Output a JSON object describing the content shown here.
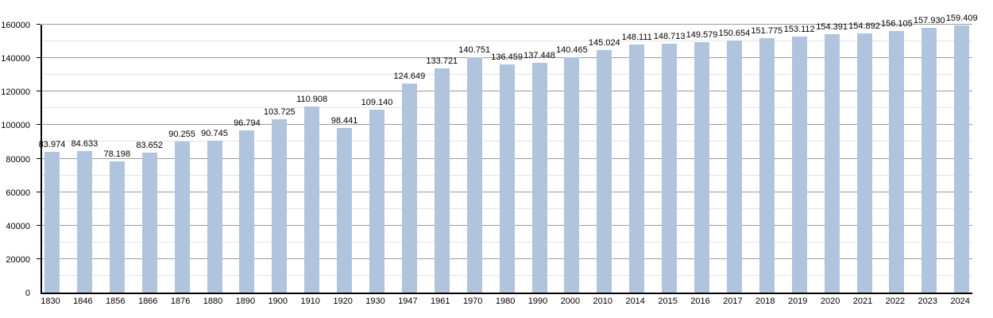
{
  "chart_data": {
    "type": "bar",
    "title": "",
    "xlabel": "",
    "ylabel": "",
    "legend_position": "none",
    "categories": [
      "1830",
      "1846",
      "1856",
      "1866",
      "1876",
      "1880",
      "1890",
      "1900",
      "1910",
      "1920",
      "1930",
      "1947",
      "1961",
      "1970",
      "1980",
      "1990",
      "2000",
      "2010",
      "2014",
      "2015",
      "2016",
      "2017",
      "2018",
      "2019",
      "2020",
      "2021",
      "2022",
      "2023",
      "2024"
    ],
    "values": [
      83974,
      84633,
      78198,
      83652,
      90255,
      90745,
      96794,
      103725,
      110908,
      98441,
      109140,
      124649,
      133721,
      140751,
      136459,
      137448,
      140465,
      145024,
      148111,
      148713,
      149579,
      150654,
      151775,
      153112,
      154391,
      154892,
      156105,
      157930,
      159409
    ],
    "bar_labels": [
      "83.974",
      "84.633",
      "78.198",
      "83.652",
      "90.255",
      "90.745",
      "96.794",
      "103.725",
      "110.908",
      "98.441",
      "109.140",
      "124.649",
      "133.721",
      "140.751",
      "136.459",
      "137.448",
      "140.465",
      "145.024",
      "148.111",
      "148.713",
      "149.579",
      "150.654",
      "151.775",
      "153.112",
      "154.391",
      "154.892",
      "156.105",
      "157.930",
      "159.409"
    ],
    "ylim": [
      0,
      160000
    ],
    "yticks": [
      0,
      20000,
      40000,
      60000,
      80000,
      100000,
      120000,
      140000,
      160000
    ],
    "ytick_labels": [
      "0",
      "20000",
      "40000",
      "60000",
      "80000",
      "100000",
      "120000",
      "140000",
      "160000"
    ],
    "grid": {
      "on": true,
      "minor_step": 10000,
      "major_step": 20000
    },
    "colors": {
      "bar": "#b0c4de",
      "grid_major": "#9b9b9b",
      "grid_minor": "#e4e4e4",
      "axis": "#000000",
      "text": "#000000"
    }
  }
}
